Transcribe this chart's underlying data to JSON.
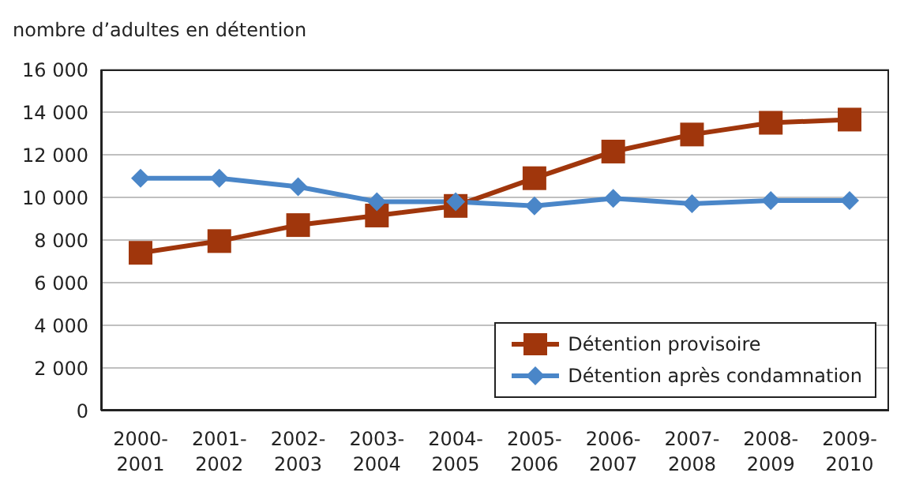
{
  "chart_data": {
    "type": "line",
    "ylabel": "nombre d’adultes en détention",
    "categories": [
      "2000-2001",
      "2001-2002",
      "2002-2003",
      "2003-2004",
      "2004-2005",
      "2005-2006",
      "2006-2007",
      "2007-2008",
      "2008-2009",
      "2009-2010"
    ],
    "series": [
      {
        "name": "Détention provisoire",
        "color": "#a0360c",
        "marker": "square",
        "values": [
          7400,
          7950,
          8700,
          9150,
          9600,
          10900,
          12150,
          12950,
          13500,
          13650
        ]
      },
      {
        "name": "Détention après condamnation",
        "color": "#4a86c8",
        "marker": "diamond",
        "values": [
          10900,
          10900,
          10500,
          9800,
          9800,
          9600,
          9950,
          9700,
          9850,
          9850
        ]
      }
    ],
    "ylim": [
      0,
      16000
    ],
    "yticks": [
      {
        "value": 0,
        "label": "0"
      },
      {
        "value": 2000,
        "label": "2 000"
      },
      {
        "value": 4000,
        "label": "4 000"
      },
      {
        "value": 6000,
        "label": "6 000"
      },
      {
        "value": 8000,
        "label": "8 000"
      },
      {
        "value": 10000,
        "label": "10 000"
      },
      {
        "value": 12000,
        "label": "12 000"
      },
      {
        "value": 14000,
        "label": "14 000"
      },
      {
        "value": 16000,
        "label": "16 000"
      }
    ],
    "grid": "y",
    "legend": "bottom right",
    "line_style": "solid"
  }
}
